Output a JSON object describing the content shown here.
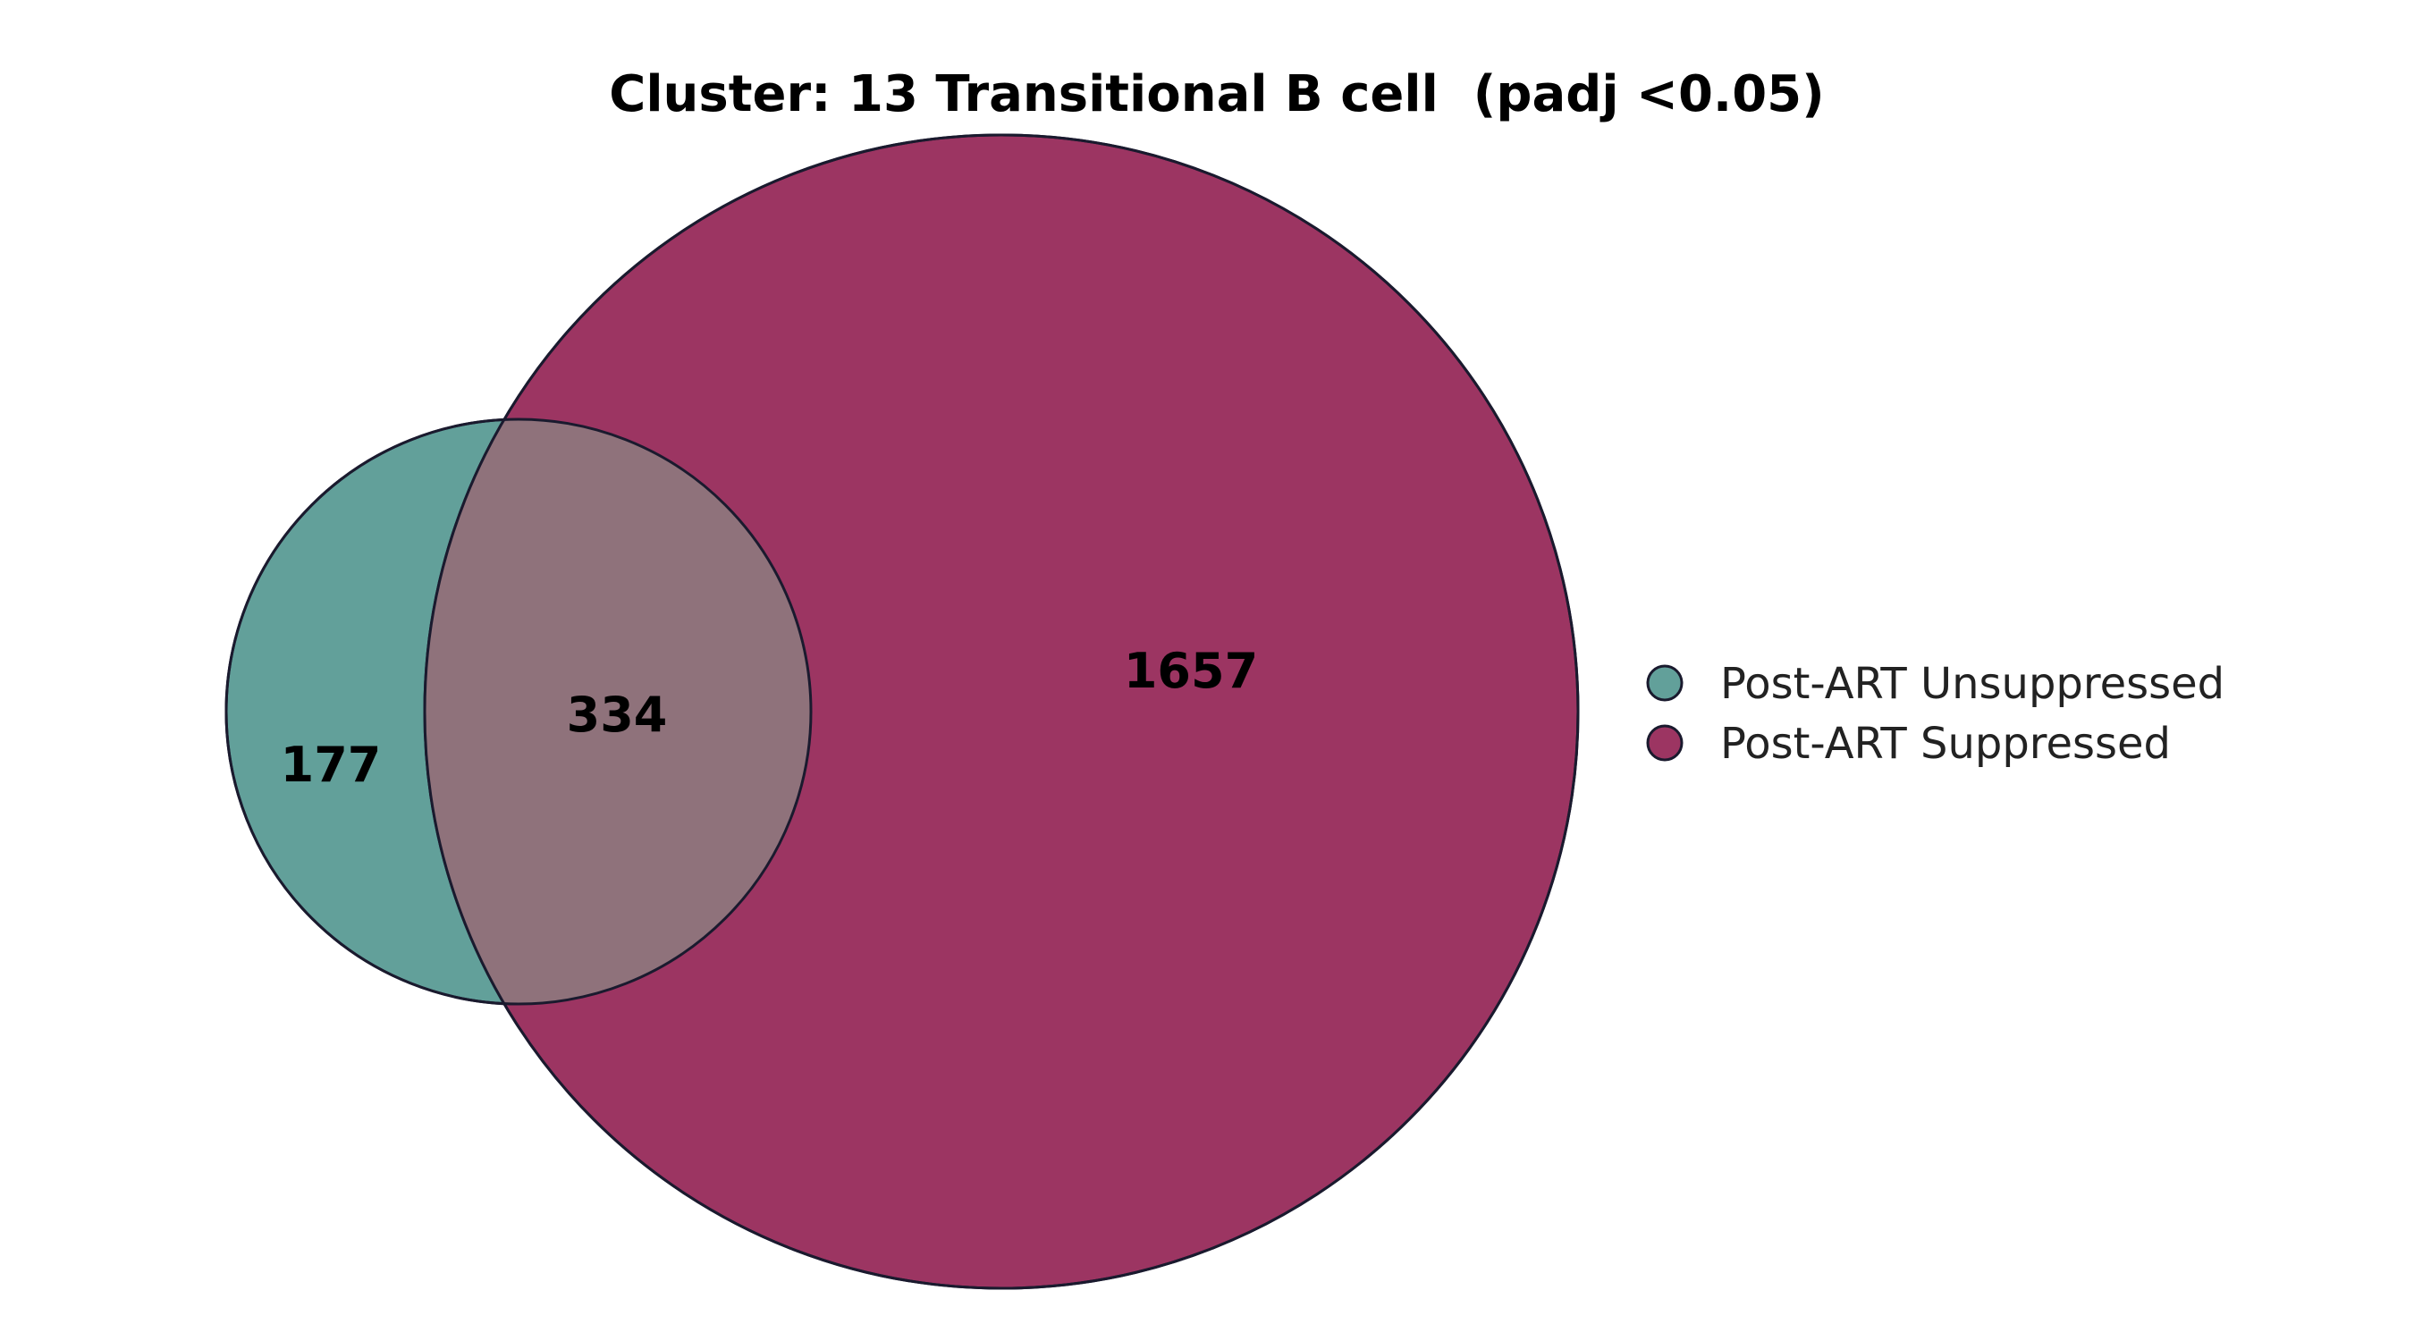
{
  "title": "Cluster: 13 Transitional B cell  (padj <0.05)",
  "sets": [
    {
      "name": "Post-ART Unsuppressed",
      "color": "#62a09a"
    },
    {
      "name": "Post-ART Suppressed",
      "color": "#9c3562"
    }
  ],
  "overlap_color": "#8f727b",
  "regions": {
    "unsuppressed_only": "177",
    "intersection": "334",
    "suppressed_only": "1657"
  }
}
